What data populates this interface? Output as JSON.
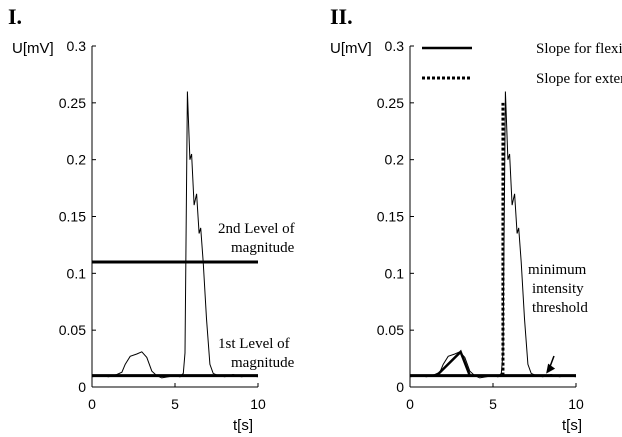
{
  "chart_data": [
    {
      "panel": "I.",
      "type": "line",
      "xlabel": "t[s]",
      "ylabel": "U[mV]",
      "xlim": [
        0,
        10
      ],
      "ylim": [
        0,
        0.3
      ],
      "xticks": [
        "0",
        "5",
        "10"
      ],
      "yticks": [
        "0",
        "0.05",
        "0.1",
        "0.15",
        "0.2",
        "0.25",
        "0.3"
      ],
      "signal": {
        "x": [
          0,
          0.5,
          1,
          1.5,
          1.8,
          2.0,
          2.3,
          2.7,
          3.0,
          3.3,
          3.6,
          3.9,
          4.2,
          4.6,
          5.0,
          5.3,
          5.5,
          5.6,
          5.75,
          5.9,
          6.0,
          6.15,
          6.3,
          6.45,
          6.55,
          6.7,
          6.9,
          7.1,
          7.3,
          7.6,
          8.0,
          8.5,
          9.0,
          9.5,
          10
        ],
        "y": [
          0.009,
          0.01,
          0.009,
          0.011,
          0.013,
          0.02,
          0.027,
          0.029,
          0.031,
          0.026,
          0.014,
          0.01,
          0.008,
          0.009,
          0.01,
          0.009,
          0.012,
          0.03,
          0.26,
          0.2,
          0.205,
          0.16,
          0.17,
          0.135,
          0.14,
          0.11,
          0.06,
          0.02,
          0.012,
          0.01,
          0.009,
          0.011,
          0.009,
          0.01,
          0.009
        ]
      },
      "levels": [
        {
          "name": "2nd Level of",
          "name2": "magnitude",
          "y": 0.11
        },
        {
          "name": "1st Level of",
          "name2": "magnitude",
          "y": 0.01
        }
      ]
    },
    {
      "panel": "II.",
      "type": "line",
      "xlabel": "t[s]",
      "ylabel": "U[mV]",
      "xlim": [
        0,
        10
      ],
      "ylim": [
        0,
        0.3
      ],
      "xticks": [
        "0",
        "5",
        "10"
      ],
      "yticks": [
        "0",
        "0.05",
        "0.1",
        "0.15",
        "0.2",
        "0.25",
        "0.3"
      ],
      "legend": [
        {
          "label": "Slope for flexion",
          "style": "solid"
        },
        {
          "label": "Slope for extension",
          "style": "dotted"
        }
      ],
      "signal": {
        "x": [
          0,
          0.5,
          1,
          1.5,
          1.8,
          2.0,
          2.3,
          2.7,
          3.0,
          3.3,
          3.6,
          3.9,
          4.2,
          4.6,
          5.0,
          5.3,
          5.5,
          5.6,
          5.75,
          5.9,
          6.0,
          6.15,
          6.3,
          6.45,
          6.55,
          6.7,
          6.9,
          7.1,
          7.3,
          7.6,
          8.0,
          8.5,
          9.0,
          9.5,
          10
        ],
        "y": [
          0.009,
          0.01,
          0.009,
          0.011,
          0.013,
          0.02,
          0.027,
          0.029,
          0.031,
          0.026,
          0.014,
          0.01,
          0.008,
          0.009,
          0.01,
          0.009,
          0.012,
          0.03,
          0.26,
          0.2,
          0.205,
          0.16,
          0.17,
          0.135,
          0.14,
          0.11,
          0.06,
          0.02,
          0.012,
          0.01,
          0.009,
          0.011,
          0.009,
          0.01,
          0.009
        ]
      },
      "threshold": {
        "y": 0.01,
        "label_lines": [
          "minimum",
          "intensity",
          "threshold"
        ],
        "arrow_to_x": 8.2
      },
      "flexion_slope": {
        "x": [
          1.6,
          3.05,
          3.6
        ],
        "y": [
          0.01,
          0.031,
          0.01
        ]
      },
      "extension_slope": {
        "x": [
          5.6,
          5.6
        ],
        "y": [
          0.01,
          0.25
        ]
      }
    }
  ]
}
